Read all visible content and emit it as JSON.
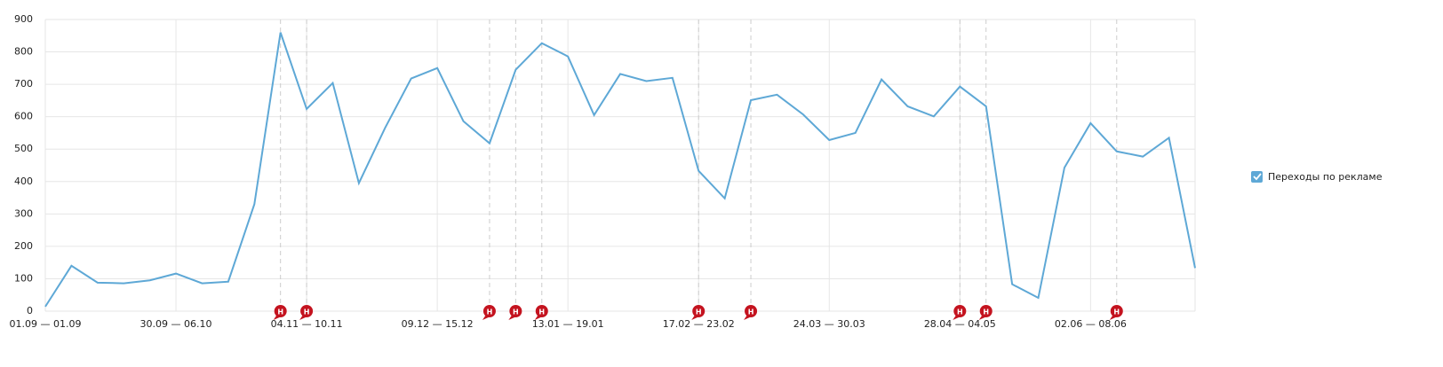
{
  "chart_data": {
    "type": "line",
    "categories": [
      "01.09 — 01.09",
      null,
      null,
      null,
      null,
      "30.09 — 06.10",
      null,
      null,
      null,
      null,
      "04.11 — 10.11",
      null,
      null,
      null,
      null,
      "09.12 — 15.12",
      null,
      null,
      null,
      null,
      "13.01 — 19.01",
      null,
      null,
      null,
      null,
      "17.02 — 23.02",
      null,
      null,
      null,
      null,
      "24.03 — 30.03",
      null,
      null,
      null,
      null,
      "28.04 — 04.05",
      null,
      null,
      null,
      null,
      "02.06 — 08.06",
      null,
      null,
      null,
      null
    ],
    "series": [
      {
        "name": "Переходы по рекламе",
        "color": "#5ea8d6",
        "values": [
          14,
          140,
          88,
          86,
          95,
          116,
          86,
          91,
          330,
          860,
          624,
          704,
          395,
          565,
          718,
          750,
          586,
          518,
          745,
          827,
          786,
          605,
          732,
          710,
          720,
          433,
          348,
          651,
          668,
          607,
          528,
          550,
          715,
          632,
          601,
          693,
          632,
          83,
          41,
          443,
          580,
          493,
          477,
          535,
          133
        ]
      }
    ],
    "ylim": [
      0,
      900
    ],
    "yticks": [
      0,
      100,
      200,
      300,
      400,
      500,
      600,
      700,
      800,
      900
    ],
    "grid": true,
    "legend": "right",
    "event_markers": {
      "label": "Н",
      "color": "#c4131f",
      "weeks": [
        9,
        10,
        17,
        18,
        19,
        25,
        27,
        35,
        36,
        41
      ]
    }
  }
}
